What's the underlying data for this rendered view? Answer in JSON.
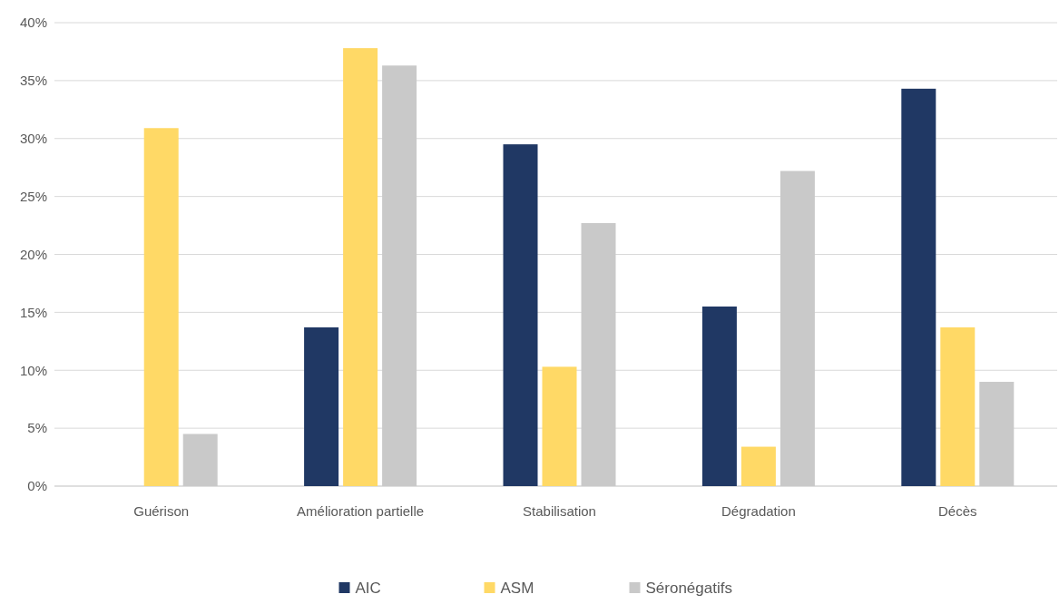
{
  "chart_data": {
    "type": "bar",
    "categories": [
      "Guérison",
      "Amélioration partielle",
      "Stabilisation",
      "Dégradation",
      "Décès"
    ],
    "series": [
      {
        "name": "AIC",
        "color": "#203864",
        "values": [
          0,
          13.7,
          29.5,
          15.5,
          34.3
        ]
      },
      {
        "name": "ASM",
        "color": "#ffd966",
        "values": [
          30.9,
          37.8,
          10.3,
          3.4,
          13.7
        ]
      },
      {
        "name": "Séronégatifs",
        "color": "#c9c9c9",
        "values": [
          4.5,
          36.3,
          22.7,
          27.2,
          9.0
        ]
      }
    ],
    "ylim": [
      0,
      40
    ],
    "yticks": [
      {
        "value": 0,
        "label": "0%"
      },
      {
        "value": 5,
        "label": "5%"
      },
      {
        "value": 10,
        "label": "10%"
      },
      {
        "value": 15,
        "label": "15%"
      },
      {
        "value": 20,
        "label": "20%"
      },
      {
        "value": 25,
        "label": "25%"
      },
      {
        "value": 30,
        "label": "30%"
      },
      {
        "value": 35,
        "label": "35%"
      },
      {
        "value": 40,
        "label": "40%"
      }
    ],
    "grid": "y",
    "legend": "bottom"
  }
}
